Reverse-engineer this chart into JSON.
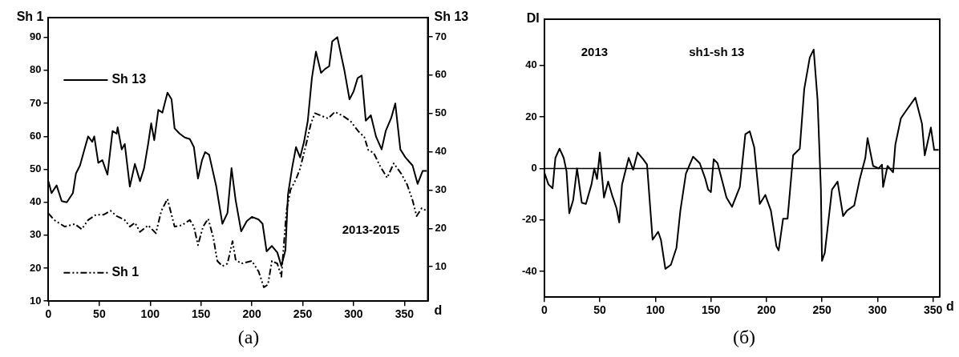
{
  "chart_data": [
    {
      "type": "line",
      "xlabel": "d",
      "ylabel": "Sh 1",
      "y2label": "Sh 13",
      "annotations": [
        "2013-2015",
        "(a)"
      ],
      "legend": "left",
      "grid": false,
      "xlim": [
        0,
        373
      ],
      "xticks": [
        0,
        50,
        100,
        150,
        200,
        250,
        300,
        350
      ],
      "ylim": [
        10,
        96
      ],
      "yticks": [
        10,
        20,
        30,
        40,
        50,
        60,
        70,
        80,
        90
      ],
      "y2lim": [
        1,
        75
      ],
      "y2ticks": [
        10,
        20,
        30,
        40,
        50,
        60,
        70
      ],
      "series": [
        {
          "name": "Sh 13",
          "color": "#000000",
          "axis": "y2",
          "line_style": "solid",
          "x": [
            0,
            3,
            8,
            13,
            18,
            24,
            27,
            31,
            36,
            39,
            43,
            45,
            49,
            53,
            58,
            63,
            67,
            68,
            72,
            75,
            80,
            85,
            90,
            94,
            98,
            101,
            104,
            108,
            112,
            117,
            121,
            124,
            129,
            134,
            139,
            143,
            147,
            151,
            154,
            158,
            165,
            171,
            176,
            180,
            184,
            189.5,
            195,
            200,
            206.6,
            210.5,
            214.5,
            219.7,
            225,
            229,
            233,
            235.5,
            239.5,
            243.4,
            247.4,
            251.3,
            255,
            259,
            263,
            268,
            272,
            276,
            279,
            284,
            291,
            296,
            300,
            304,
            308,
            312,
            317,
            322,
            327.6,
            331.6,
            337,
            341,
            346,
            351,
            358,
            363,
            368,
            372
          ],
          "values": [
            32.3,
            29.2,
            31.2,
            27.1,
            26.8,
            29.2,
            34.3,
            36.4,
            41.2,
            44,
            42.6,
            44,
            37.1,
            37.8,
            34,
            45.4,
            44.7,
            46.4,
            40.6,
            42,
            30.9,
            36.8,
            32.3,
            35.7,
            42,
            47.4,
            43,
            50.9,
            50.2,
            55.4,
            53.7,
            46.1,
            44.7,
            43.7,
            43.3,
            41.2,
            33,
            37.8,
            39.9,
            39.2,
            30.9,
            21.2,
            24,
            35.7,
            27.4,
            19.2,
            21.9,
            23,
            22.3,
            21.2,
            14,
            15.4,
            13.7,
            10.2,
            14.3,
            28.8,
            35.7,
            41.2,
            38.5,
            42.6,
            48.1,
            59.2,
            66.1,
            60.6,
            61.6,
            62.3,
            68.8,
            69.9,
            61.2,
            53.7,
            55.7,
            59.2,
            59.9,
            48.1,
            49.5,
            44,
            40.6,
            45.4,
            48.8,
            52.6,
            40.6,
            38.5,
            36.4,
            31.6,
            35,
            35
          ]
        },
        {
          "name": "Sh 1",
          "color": "#000000",
          "axis": "y",
          "line_style": "dashed",
          "x": [
            0,
            5.6,
            16,
            26,
            32.6,
            39,
            46.7,
            54,
            61,
            67,
            75,
            80,
            85,
            90,
            98,
            105.6,
            111,
            117,
            124,
            131,
            139,
            143,
            147,
            152,
            157,
            162,
            166,
            171,
            176,
            181,
            184,
            189.5,
            200,
            206.6,
            211.8,
            215.8,
            219.7,
            225,
            229,
            234,
            238,
            243.4,
            247.4,
            252.6,
            258,
            262,
            268.4,
            275,
            281.6,
            289.5,
            297,
            305,
            310.5,
            314.5,
            319.7,
            326,
            333,
            339.5,
            347,
            352.6,
            358,
            362,
            367,
            372
          ],
          "values": [
            36.6,
            34.6,
            32.6,
            33.4,
            31.8,
            34.6,
            36.2,
            36.2,
            37.4,
            35.8,
            34.6,
            32.6,
            33.8,
            31,
            33,
            30.6,
            37.4,
            41,
            32.6,
            33,
            34.6,
            32.6,
            27,
            32.6,
            35,
            29.4,
            22.2,
            20.6,
            21.4,
            28.2,
            22.6,
            21.4,
            22.2,
            19,
            14.2,
            15,
            22.2,
            21.4,
            17.4,
            37.4,
            43.8,
            47,
            50.2,
            56.6,
            63.8,
            67,
            66.2,
            65.4,
            67.4,
            66.2,
            64.6,
            61.4,
            59.8,
            55.8,
            55,
            51,
            47.4,
            51.8,
            48.6,
            45.4,
            40.6,
            35.8,
            38.2,
            37.4
          ]
        }
      ]
    },
    {
      "type": "line",
      "xlabel": "d",
      "ylabel": "DI",
      "annotations": [
        "2013",
        "sh1-sh 13",
        "(б)"
      ],
      "grid": false,
      "xlim": [
        0,
        356
      ],
      "xticks": [
        0,
        50,
        100,
        150,
        200,
        250,
        300,
        350
      ],
      "ylim": [
        -50,
        58
      ],
      "yticks": [
        -40,
        -20,
        0,
        20,
        40
      ],
      "ref_lines": [
        {
          "axis": "y",
          "value": 0,
          "color": "#000000"
        }
      ],
      "series": [
        {
          "color": "#000000",
          "line_style": "solid",
          "x": [
            0,
            3.75,
            7.5,
            10,
            13.75,
            17.5,
            20,
            22.5,
            26,
            29.5,
            33.75,
            37.5,
            42.5,
            45,
            47.5,
            50,
            53.75,
            57.5,
            61,
            65,
            67.5,
            70,
            76,
            80,
            84,
            89,
            92.5,
            97.5,
            102.5,
            105,
            109,
            114,
            119,
            122.5,
            127.5,
            134,
            140,
            145,
            147.5,
            150,
            152.5,
            156,
            161,
            164,
            169,
            176,
            181,
            185,
            189,
            194,
            199,
            204,
            209,
            211,
            215,
            219,
            224,
            230,
            234,
            239,
            242.5,
            246,
            249,
            250,
            252.5,
            259,
            264,
            269,
            272.5,
            279,
            284,
            289,
            291,
            296,
            301,
            304,
            305,
            309,
            314,
            316,
            321,
            326,
            334,
            340,
            342.5,
            348,
            351,
            355
          ],
          "values": [
            -1.5,
            -6.2,
            -7.7,
            4.1,
            7.7,
            4.1,
            -1,
            -17.4,
            -12.3,
            0,
            -13.3,
            -13.8,
            -6.2,
            0,
            -4.1,
            6.2,
            -11.3,
            -5.1,
            -10.3,
            -15.4,
            -21,
            -6.2,
            4.1,
            -0.5,
            6.2,
            3.6,
            1.5,
            -27.7,
            -24.6,
            -27.7,
            -39,
            -37.4,
            -30.8,
            -16.4,
            -2,
            4.6,
            2,
            -4.1,
            -8.2,
            -9.2,
            3.6,
            2,
            -6.2,
            -11.3,
            -14.9,
            -7.2,
            13.3,
            14.4,
            8.2,
            -13.8,
            -10.3,
            -16.4,
            -30.3,
            -31.8,
            -19.5,
            -19.5,
            5.1,
            7.7,
            30.8,
            43.1,
            46.2,
            26.7,
            -8.2,
            -35.9,
            -32.8,
            -8.2,
            -5.1,
            -18.5,
            -16.4,
            -14.4,
            -4.1,
            4.1,
            11.8,
            1,
            0,
            1.5,
            -7.2,
            1,
            -1.5,
            9.2,
            19.5,
            22.6,
            27.5,
            17.4,
            5.1,
            15.9,
            7.2,
            7.2
          ]
        }
      ]
    }
  ]
}
